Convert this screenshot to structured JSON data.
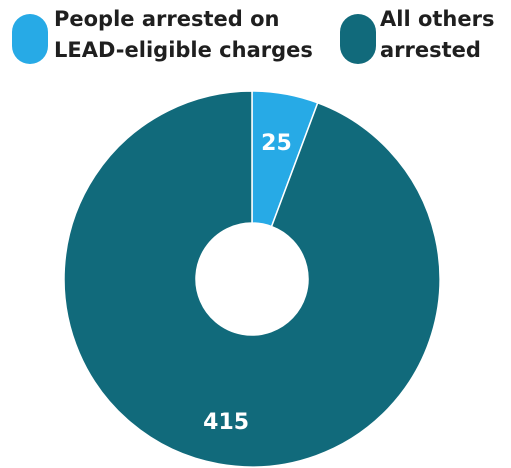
{
  "legend": {
    "items": [
      {
        "label": "People arrested on\nLEAD-eligible charges",
        "color": "#27aae6"
      },
      {
        "label": "All others\narrested",
        "color": "#116a7b"
      }
    ]
  },
  "chart_data": {
    "type": "pie",
    "categories": [
      "People arrested on LEAD-eligible charges",
      "All others arrested"
    ],
    "values": [
      25,
      415
    ],
    "data_labels": [
      "25",
      "415"
    ],
    "colors": [
      "#27aae6",
      "#116a7b"
    ],
    "donut": true,
    "legend_position": "top",
    "title": ""
  }
}
